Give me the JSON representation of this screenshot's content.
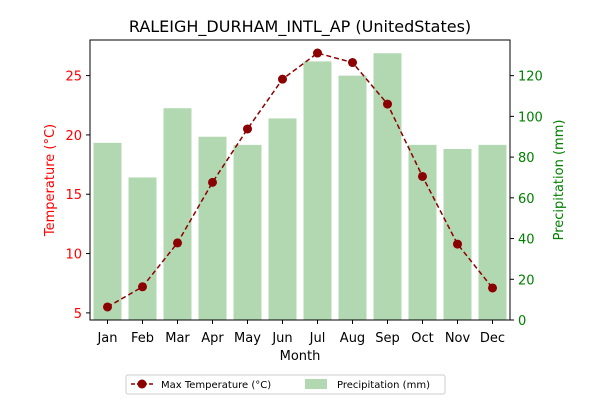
{
  "chart_data": {
    "type": "bar+line",
    "title": "RALEIGH_DURHAM_INTL_AP (UnitedStates)",
    "xlabel": "Month",
    "ylabel_left": "Temperature (°C)",
    "ylabel_right": "Precipitation (mm)",
    "categories": [
      "Jan",
      "Feb",
      "Mar",
      "Apr",
      "May",
      "Jun",
      "Jul",
      "Aug",
      "Sep",
      "Oct",
      "Nov",
      "Dec"
    ],
    "series": [
      {
        "name": "Max Temperature (°C)",
        "kind": "line",
        "axis": "left",
        "color": "#8b0000",
        "values": [
          5.5,
          7.2,
          10.9,
          16.0,
          20.5,
          24.7,
          26.9,
          26.1,
          22.6,
          16.5,
          10.8,
          7.1
        ]
      },
      {
        "name": "Precipitation (mm)",
        "kind": "bar",
        "axis": "right",
        "color": "#b2d8b2",
        "values": [
          87,
          70,
          104,
          90,
          86,
          99,
          127,
          120,
          131,
          86,
          84,
          86
        ]
      }
    ],
    "ylim_left": [
      4.4,
      28.0
    ],
    "yticks_left": [
      5,
      10,
      15,
      20,
      25
    ],
    "ylim_right": [
      0,
      137.5
    ],
    "yticks_right": [
      0,
      20,
      40,
      60,
      80,
      100,
      120
    ],
    "left_axis_color": "#ff0000",
    "right_axis_color": "#008000",
    "legend_position": "bottom-center",
    "grid": false
  }
}
